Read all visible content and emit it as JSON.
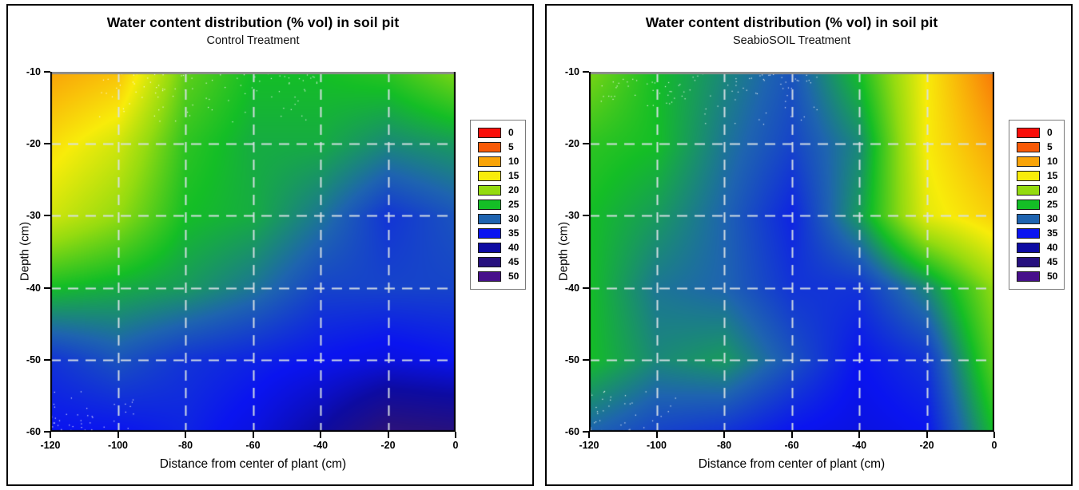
{
  "legend": {
    "values": [
      "0",
      "5",
      "10",
      "15",
      "20",
      "25",
      "30",
      "35",
      "40",
      "45",
      "50"
    ],
    "colors": [
      "#F90D09",
      "#F85A07",
      "#F9A409",
      "#F8EC0A",
      "#94DB10",
      "#14BE26",
      "#1E64B0",
      "#0A14F0",
      "#0D0BA2",
      "#27117E",
      "#470F8B"
    ]
  },
  "axes": {
    "x_ticks": [
      "-120",
      "-100",
      "-80",
      "-60",
      "-40",
      "-20",
      "0"
    ],
    "y_ticks": [
      "-10",
      "-20",
      "-30",
      "-40",
      "-50",
      "-60"
    ]
  },
  "chart_data": [
    {
      "type": "heatmap",
      "title": "Water content distribution (% vol) in soil pit",
      "subtitle": "Control Treatment",
      "xlabel": "Distance from center of plant (cm)",
      "ylabel": "Depth (cm)",
      "x": [
        -120,
        -100,
        -80,
        -60,
        -40,
        -20,
        0
      ],
      "y": [
        -10,
        -20,
        -30,
        -40,
        -50,
        -60
      ],
      "xlim": [
        -120,
        0
      ],
      "ylim": [
        -60,
        -10
      ],
      "grid": "dashed",
      "legend_position": "right",
      "units": "% vol",
      "values_percent_vol": [
        [
          10,
          12,
          22,
          25,
          25,
          24,
          21
        ],
        [
          14,
          17,
          24,
          26,
          26,
          28,
          27
        ],
        [
          17,
          20,
          25,
          26,
          29,
          33,
          31
        ],
        [
          25,
          26,
          27,
          29,
          32,
          32,
          32
        ],
        [
          33,
          31,
          33,
          34,
          35,
          36,
          35
        ],
        [
          35,
          35,
          34,
          36,
          40,
          46,
          45
        ]
      ]
    },
    {
      "type": "heatmap",
      "title": "Water content distribution (% vol) in soil pit",
      "subtitle": "SeabioSOIL Treatment",
      "xlabel": "Distance from center of plant (cm)",
      "ylabel": "Depth (cm)",
      "x": [
        -120,
        -100,
        -80,
        -60,
        -40,
        -20,
        0
      ],
      "y": [
        -10,
        -20,
        -30,
        -40,
        -50,
        -60
      ],
      "xlim": [
        -120,
        0
      ],
      "ylim": [
        -60,
        -10
      ],
      "grid": "dashed",
      "legend_position": "right",
      "units": "% vol",
      "values_percent_vol": [
        [
          21,
          25,
          28,
          31,
          25,
          15,
          7
        ],
        [
          24,
          25,
          29,
          32,
          28,
          15,
          10
        ],
        [
          25,
          27,
          30,
          34,
          27,
          16,
          13
        ],
        [
          25,
          29,
          30,
          33,
          33,
          28,
          20
        ],
        [
          25,
          28,
          27,
          31,
          35,
          33,
          22
        ],
        [
          30,
          32,
          33,
          35,
          36,
          35,
          25
        ]
      ]
    }
  ]
}
